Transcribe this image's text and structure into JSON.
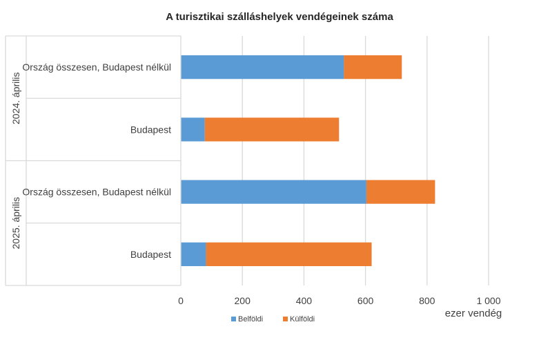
{
  "chart_data": {
    "type": "bar",
    "orientation": "horizontal",
    "stacked": true,
    "title": "A turisztikai szálláshelyek vendégeinek száma",
    "xlabel": "ezer vendég",
    "xlim": [
      0,
      1000
    ],
    "xticks": [
      0,
      200,
      400,
      600,
      800,
      1000
    ],
    "xtick_labels": [
      "0",
      "200",
      "400",
      "600",
      "800",
      "1 000"
    ],
    "grid": true,
    "legend_position": "bottom",
    "groups": [
      {
        "label": "2024. április",
        "categories": [
          "Ország összesen, Budapest nélkül",
          "Budapest"
        ]
      },
      {
        "label": "2025. április",
        "categories": [
          "Ország összesen, Budapest nélkül",
          "Budapest"
        ]
      }
    ],
    "series": [
      {
        "name": "Belföldi",
        "color": "#5b9bd5",
        "values": [
          530,
          78,
          603,
          82
        ]
      },
      {
        "name": "Külföldi",
        "color": "#ed7d31",
        "values": [
          188,
          436,
          223,
          538
        ]
      }
    ]
  }
}
